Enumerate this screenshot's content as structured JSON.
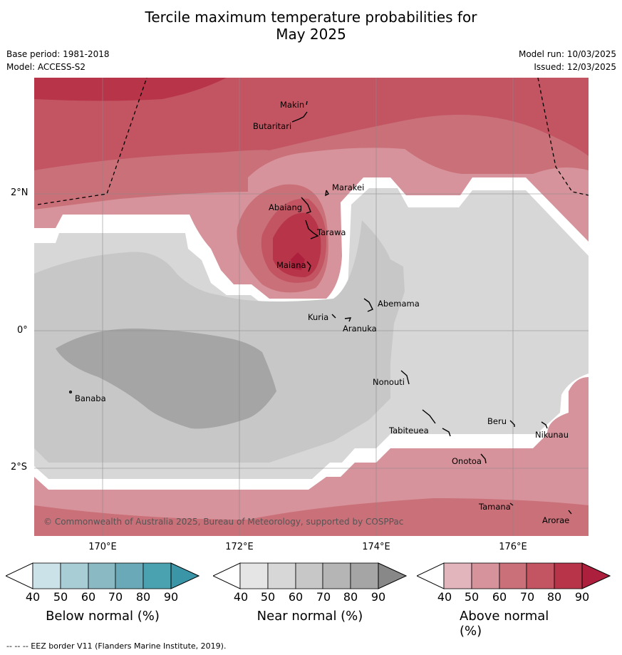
{
  "title_line1": "Tercile maximum temperature probabilities for",
  "title_line2": "May 2025",
  "meta": {
    "base_period": "Base period: 1981-2018",
    "model": "Model: ACCESS-S2",
    "model_run": "Model run: 10/03/2025",
    "issued": "Issued: 12/03/2025"
  },
  "lat_labels": {
    "n2": "2°N",
    "eq": "0°",
    "s2": "2°S"
  },
  "lon_labels": {
    "e170": "170°E",
    "e172": "172°E",
    "e174": "174°E",
    "e176": "176°E"
  },
  "places": {
    "makin": "Makin",
    "butaritari": "Butaritari",
    "marakei": "Marakei",
    "abaiang": "Abaiang",
    "tarawa": "Tarawa",
    "maiana": "Maiana",
    "abemama": "Abemama",
    "kuria": "Kuria",
    "aranuka": "Aranuka",
    "banaba": "Banaba",
    "nonouti": "Nonouti",
    "beru": "Beru",
    "tabiteuea": "Tabiteuea",
    "nikunau": "Nikunau",
    "onotoa": "Onotoa",
    "tamana": "Tamana",
    "arorae": "Arorae"
  },
  "copyright": "© Commonwealth of Australia 2025, Bureau of Meteorology, supported by COSPPac",
  "colorbars": {
    "ticks": [
      "40",
      "50",
      "60",
      "70",
      "80",
      "90"
    ],
    "below": {
      "label": "Below normal (%)",
      "colors": [
        "#cbe2e8",
        "#a9cdd4",
        "#8ab9c4",
        "#6aaab8",
        "#4aa2b0",
        "#3a95a6"
      ]
    },
    "near": {
      "label": "Near normal (%)",
      "colors": [
        "#e5e5e5",
        "#d7d7d7",
        "#c7c7c7",
        "#b5b5b5",
        "#a5a5a5",
        "#888888"
      ]
    },
    "above": {
      "label": "Above normal (%)",
      "colors": [
        "#e2b5bc",
        "#d7939b",
        "#ca7079",
        "#c35563",
        "#b83549",
        "#ac1f3d"
      ]
    }
  },
  "footer": "--  --  -- EEZ border V11 (Flanders Marine Institute, 2019)."
}
